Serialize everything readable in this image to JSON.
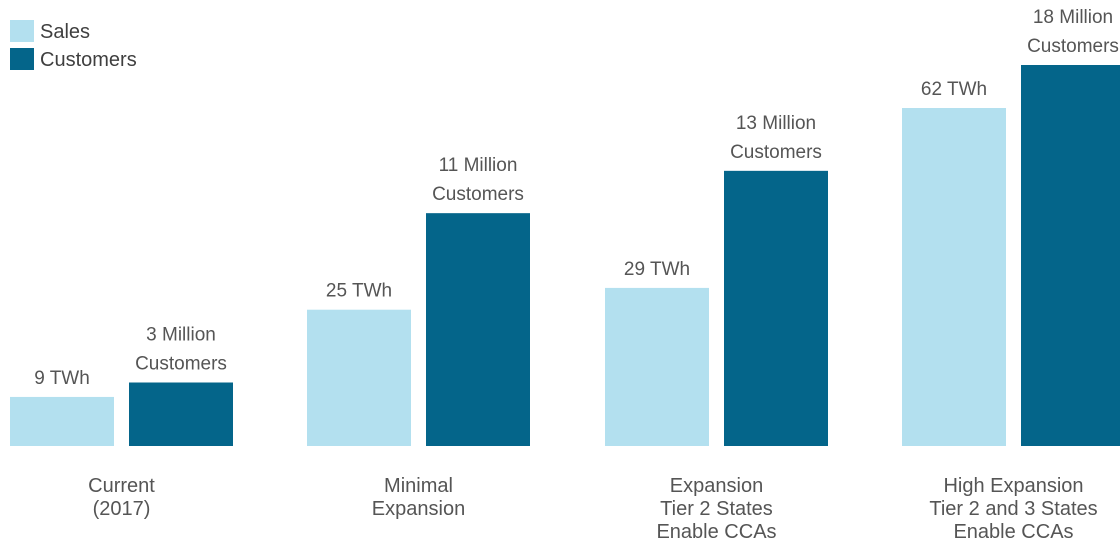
{
  "chart_data": {
    "type": "bar",
    "categories": [
      [
        "Current",
        "(2017)"
      ],
      [
        "Minimal",
        "Expansion"
      ],
      [
        "Expansion",
        "Tier 2 States",
        "Enable CCAs"
      ],
      [
        "High Expansion",
        "Tier 2 and 3 States",
        "Enable CCAs"
      ]
    ],
    "series": [
      {
        "name": "Sales",
        "color": "#b3e0ef",
        "values": [
          9,
          25,
          29,
          62
        ],
        "unit": "TWh",
        "labels": [
          [
            "9 TWh"
          ],
          [
            "25 TWh"
          ],
          [
            "29 TWh"
          ],
          [
            "62 TWh"
          ]
        ]
      },
      {
        "name": "Customers",
        "color": "#04658a",
        "values": [
          3,
          11,
          13,
          18
        ],
        "unit": "Million Customers",
        "labels": [
          [
            "3 Million",
            "Customers"
          ],
          [
            "11 Million",
            "Customers"
          ],
          [
            "13 Million",
            "Customers"
          ],
          [
            "18 Million",
            "Customers"
          ]
        ]
      }
    ],
    "legend_position": "top-left",
    "axes_visible": false,
    "grid": false
  }
}
